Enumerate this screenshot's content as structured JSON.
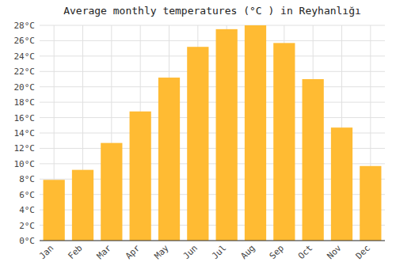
{
  "chart_data": {
    "type": "bar",
    "title": "Average monthly temperatures (°C ) in Reyhanlığı",
    "categories": [
      "Jan",
      "Feb",
      "Mar",
      "Apr",
      "May",
      "Jun",
      "Jul",
      "Aug",
      "Sep",
      "Oct",
      "Nov",
      "Dec"
    ],
    "values": [
      7.9,
      9.2,
      12.7,
      16.8,
      21.2,
      25.2,
      27.5,
      28.0,
      25.7,
      21.0,
      14.7,
      9.7
    ],
    "color": "#FFBB33",
    "ylim": [
      0,
      28
    ],
    "yticks": [
      {
        "value": 0,
        "label": "0°C"
      },
      {
        "value": 2,
        "label": "2°C"
      },
      {
        "value": 4,
        "label": "4°C"
      },
      {
        "value": 6,
        "label": "6°C"
      },
      {
        "value": 8,
        "label": "8°C"
      },
      {
        "value": 10,
        "label": "10°C"
      },
      {
        "value": 12,
        "label": "12°C"
      },
      {
        "value": 14,
        "label": "14°C"
      },
      {
        "value": 16,
        "label": "16°C"
      },
      {
        "value": 18,
        "label": "18°C"
      },
      {
        "value": 20,
        "label": "20°C"
      },
      {
        "value": 22,
        "label": "22°C"
      },
      {
        "value": 24,
        "label": "24°C"
      },
      {
        "value": 26,
        "label": "26°C"
      },
      {
        "value": 28,
        "label": "28°C"
      }
    ],
    "grid": true
  }
}
